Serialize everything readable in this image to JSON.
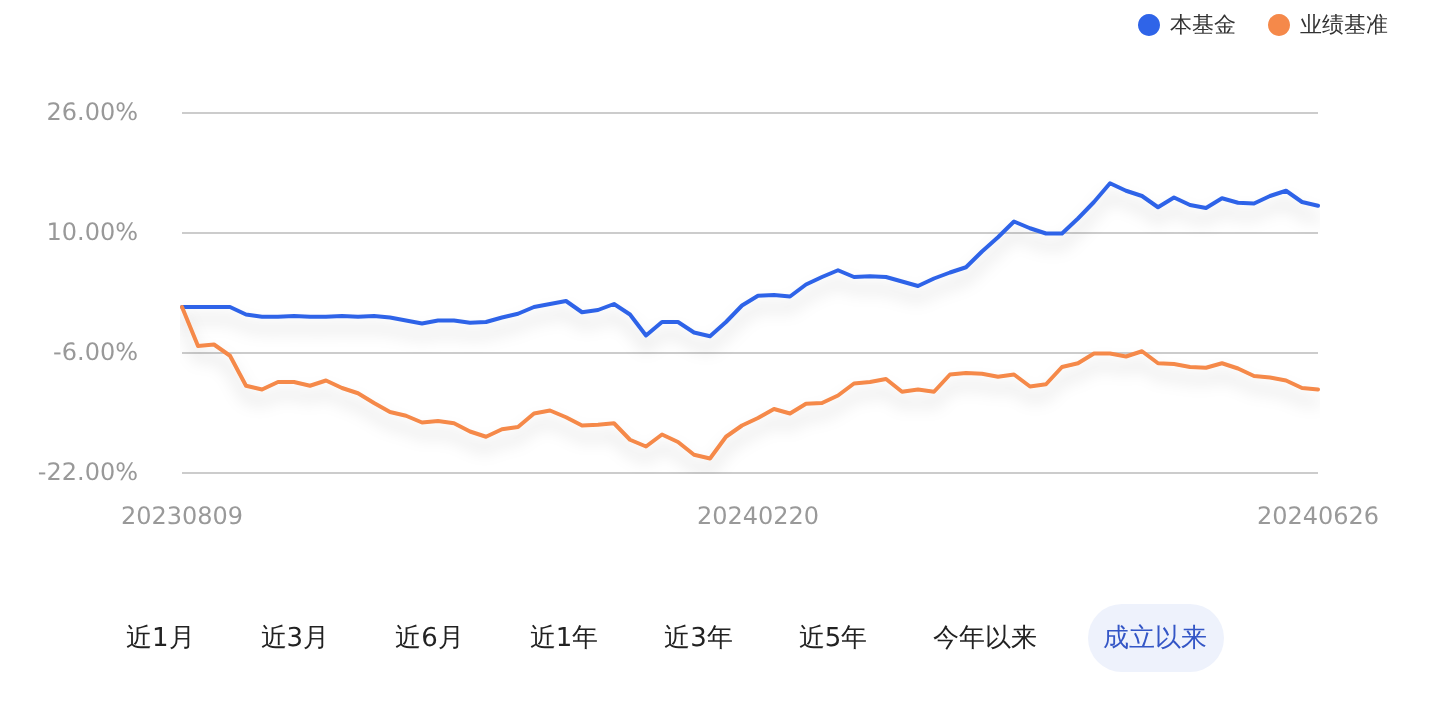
{
  "chart_data": {
    "type": "line",
    "categories": [
      "20230809",
      null,
      null,
      null,
      null,
      null,
      null,
      null,
      null,
      null,
      null,
      null,
      null,
      null,
      null,
      null,
      null,
      null,
      null,
      null,
      null,
      null,
      null,
      null,
      null,
      null,
      null,
      null,
      null,
      null,
      null,
      null,
      null,
      null,
      null,
      null,
      "20240220",
      null,
      null,
      null,
      null,
      null,
      null,
      null,
      null,
      null,
      null,
      null,
      null,
      null,
      null,
      null,
      null,
      null,
      null,
      null,
      null,
      null,
      null,
      null,
      null,
      null,
      null,
      null,
      null,
      null,
      null,
      null,
      null,
      null,
      null,
      "20240626"
    ],
    "series": [
      {
        "name": "本基金",
        "color": "#2f64e8",
        "values": [
          0,
          0,
          0,
          0,
          -1.0,
          -1.3,
          -1.3,
          -1.2,
          -1.3,
          -1.3,
          -1.2,
          -1.3,
          -1.2,
          -1.4,
          -1.8,
          -2.2,
          -1.8,
          -1.8,
          -2.1,
          -2.0,
          -1.4,
          -0.9,
          0.0,
          0.4,
          0.8,
          -0.7,
          -0.4,
          0.4,
          -1.0,
          -3.8,
          -2.0,
          -2.0,
          -3.4,
          -3.9,
          -2.0,
          0.2,
          1.5,
          1.6,
          1.4,
          3.0,
          4.0,
          4.9,
          4.0,
          4.1,
          4.0,
          3.4,
          2.8,
          3.8,
          4.6,
          5.3,
          7.4,
          9.3,
          11.4,
          10.5,
          9.8,
          9.8,
          11.8,
          14.0,
          16.5,
          15.5,
          14.8,
          13.3,
          14.6,
          13.6,
          13.2,
          14.5,
          13.9,
          13.8,
          14.8,
          15.5,
          14.0,
          13.5
        ]
      },
      {
        "name": "业绩基准",
        "color": "#f5894a",
        "values": [
          0,
          -5.2,
          -5.0,
          -6.5,
          -10.5,
          -11.0,
          -10.0,
          -10.0,
          -10.5,
          -9.8,
          -10.8,
          -11.5,
          -12.8,
          -14.0,
          -14.5,
          -15.4,
          -15.2,
          -15.5,
          -16.6,
          -17.3,
          -16.3,
          -16.0,
          -14.2,
          -13.8,
          -14.7,
          -15.8,
          -15.7,
          -15.5,
          -17.7,
          -18.6,
          -17.0,
          -18.0,
          -19.7,
          -20.2,
          -17.3,
          -15.8,
          -14.8,
          -13.6,
          -14.2,
          -12.9,
          -12.8,
          -11.8,
          -10.2,
          -10.0,
          -9.6,
          -11.3,
          -11.0,
          -11.3,
          -9.0,
          -8.8,
          -8.9,
          -9.3,
          -9.0,
          -10.6,
          -10.3,
          -8.0,
          -7.5,
          -6.2,
          -6.2,
          -6.6,
          -5.9,
          -7.5,
          -7.6,
          -8.0,
          -8.1,
          -7.5,
          -8.2,
          -9.2,
          -9.4,
          -9.8,
          -10.8,
          -11.0
        ]
      }
    ],
    "ylim": [
      -22,
      26
    ],
    "yticks": [
      {
        "value": 26,
        "label": "26.00%"
      },
      {
        "value": 10,
        "label": "10.00%"
      },
      {
        "value": -6,
        "label": "-6.00%"
      },
      {
        "value": -22,
        "label": "-22.00%"
      }
    ],
    "grid": "y",
    "legend": "top right",
    "marker": "none",
    "line_style": "solid",
    "annotations": [
      "近1月",
      "近3月",
      "近6月",
      "近1年",
      "近3年",
      "近5年",
      "今年以来",
      "成立以来"
    ]
  }
}
